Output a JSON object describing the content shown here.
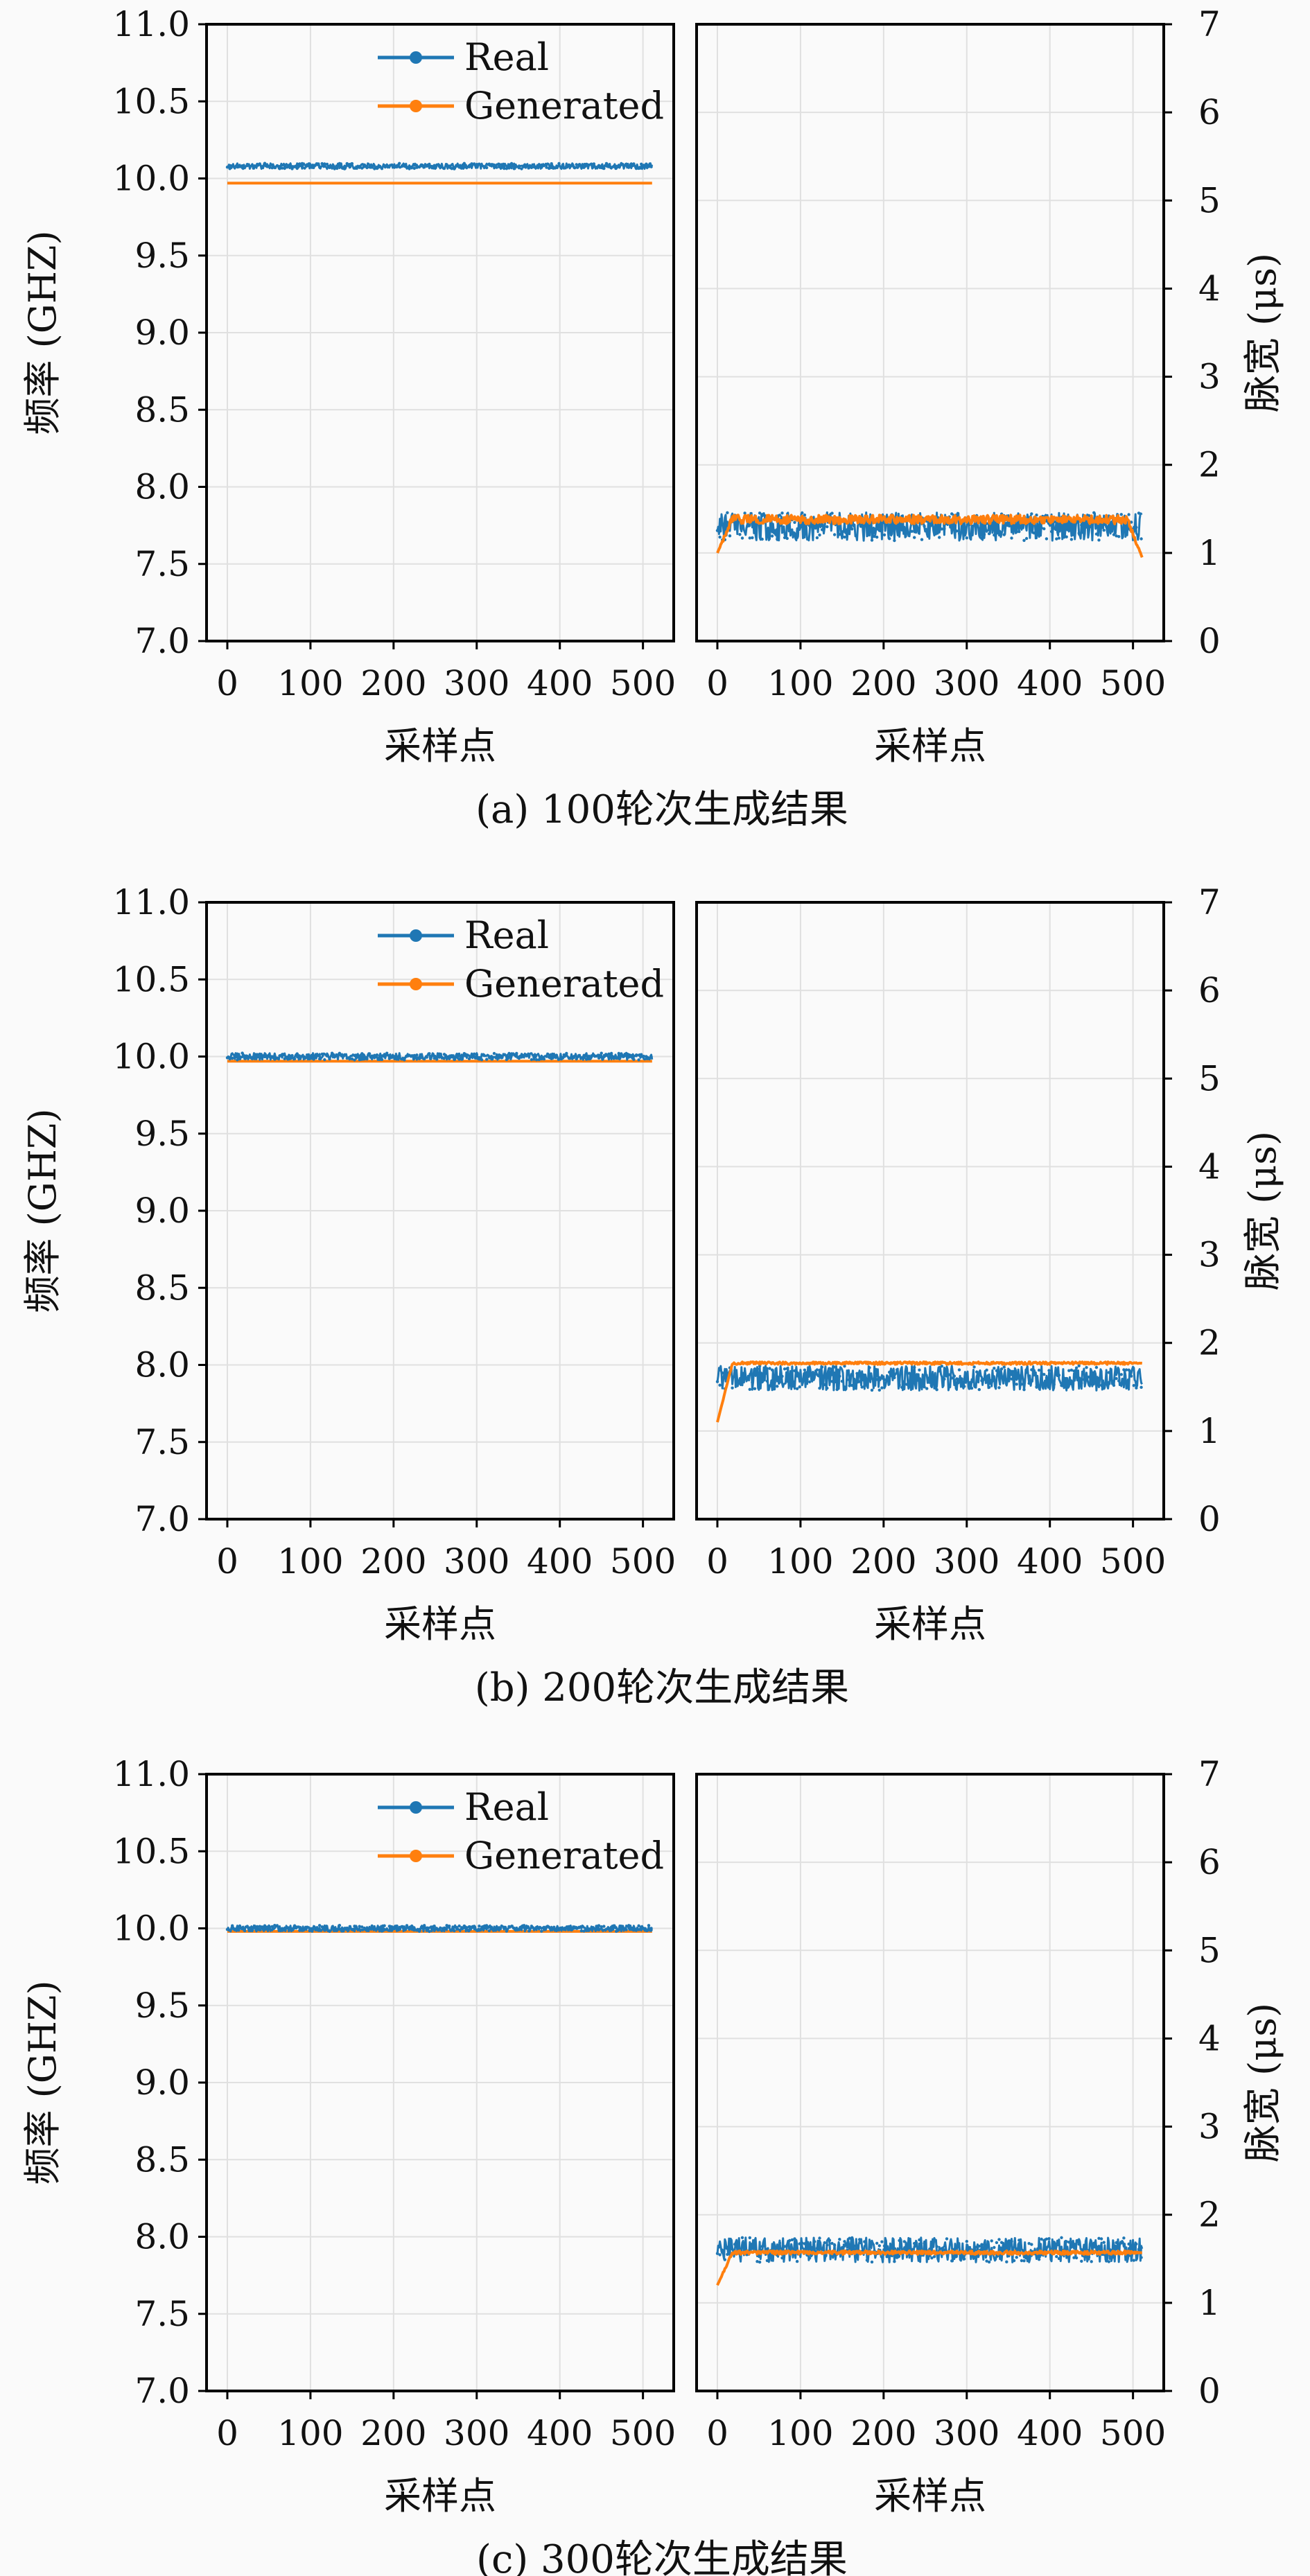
{
  "colors": {
    "real": "#1f77b4",
    "generated": "#ff7f0e"
  },
  "panels": [
    {
      "caption": "(a) 100轮次生成结果",
      "freq_chart": {
        "type": "line",
        "ylabel": "频率 (GHZ)",
        "xlabel": "采样点",
        "ylim": [
          7.0,
          11.0
        ],
        "xlim": [
          -25,
          537
        ],
        "yticks": [
          "7.0",
          "7.5",
          "8.0",
          "8.5",
          "9.0",
          "9.5",
          "10.0",
          "10.5",
          "11.0"
        ],
        "xticks": [
          "0",
          "100",
          "200",
          "300",
          "400",
          "500"
        ],
        "grid": true,
        "legend_position": "top-right",
        "series": [
          {
            "name": "Real",
            "mean": 10.08,
            "spread": 0.018,
            "x_range": [
              0,
              511
            ]
          },
          {
            "name": "Generated",
            "mean": 9.97,
            "spread": 0.0,
            "x_range": [
              0,
              511
            ]
          }
        ]
      },
      "pw_chart": {
        "type": "line",
        "ylabel": "脉宽 (μs)",
        "xlabel": "采样点",
        "ylim": [
          0,
          7
        ],
        "xlim": [
          -25,
          537
        ],
        "yticks": [
          "0",
          "1",
          "2",
          "3",
          "4",
          "5",
          "6",
          "7"
        ],
        "xticks": [
          "0",
          "100",
          "200",
          "300",
          "400",
          "500"
        ],
        "grid": true,
        "series": [
          {
            "name": "Real",
            "mean": 1.3,
            "spread": 0.16,
            "x_range": [
              0,
              511
            ]
          },
          {
            "name": "Generated",
            "mean": 1.38,
            "spread": 0.05,
            "start": 1.0,
            "end": 0.95,
            "x_range": [
              0,
              511
            ]
          }
        ]
      }
    },
    {
      "caption": "(b) 200轮次生成结果",
      "freq_chart": {
        "type": "line",
        "ylabel": "频率 (GHZ)",
        "xlabel": "采样点",
        "ylim": [
          7.0,
          11.0
        ],
        "xlim": [
          -25,
          537
        ],
        "yticks": [
          "7.0",
          "7.5",
          "8.0",
          "8.5",
          "9.0",
          "9.5",
          "10.0",
          "10.5",
          "11.0"
        ],
        "xticks": [
          "0",
          "100",
          "200",
          "300",
          "400",
          "500"
        ],
        "grid": true,
        "legend_position": "top-right",
        "series": [
          {
            "name": "Real",
            "mean": 10.0,
            "spread": 0.022,
            "x_range": [
              0,
              511
            ]
          },
          {
            "name": "Generated",
            "mean": 9.97,
            "spread": 0.0,
            "x_range": [
              0,
              511
            ]
          }
        ]
      },
      "pw_chart": {
        "type": "line",
        "ylabel": "脉宽 (μs)",
        "xlabel": "采样点",
        "ylim": [
          0,
          7
        ],
        "xlim": [
          -25,
          537
        ],
        "yticks": [
          "0",
          "1",
          "2",
          "3",
          "4",
          "5",
          "6",
          "7"
        ],
        "xticks": [
          "0",
          "100",
          "200",
          "300",
          "400",
          "500"
        ],
        "grid": true,
        "series": [
          {
            "name": "Real",
            "mean": 1.6,
            "spread": 0.14,
            "x_range": [
              0,
              511
            ]
          },
          {
            "name": "Generated",
            "mean": 1.77,
            "spread": 0.015,
            "start": 1.1,
            "end": 1.77,
            "x_range": [
              0,
              511
            ]
          }
        ]
      }
    },
    {
      "caption": "(c) 300轮次生成结果",
      "freq_chart": {
        "type": "line",
        "ylabel": "频率 (GHZ)",
        "xlabel": "采样点",
        "ylim": [
          7.0,
          11.0
        ],
        "xlim": [
          -25,
          537
        ],
        "yticks": [
          "7.0",
          "7.5",
          "8.0",
          "8.5",
          "9.0",
          "9.5",
          "10.0",
          "10.5",
          "11.0"
        ],
        "xticks": [
          "0",
          "100",
          "200",
          "300",
          "400",
          "500"
        ],
        "grid": true,
        "legend_position": "top-right",
        "series": [
          {
            "name": "Real",
            "mean": 10.0,
            "spread": 0.02,
            "x_range": [
              0,
              511
            ]
          },
          {
            "name": "Generated",
            "mean": 9.98,
            "spread": 0.0,
            "x_range": [
              0,
              511
            ]
          }
        ]
      },
      "pw_chart": {
        "type": "line",
        "ylabel": "脉宽 (μs)",
        "xlabel": "采样点",
        "ylim": [
          0,
          7
        ],
        "xlim": [
          -25,
          537
        ],
        "yticks": [
          "0",
          "1",
          "2",
          "3",
          "4",
          "5",
          "6",
          "7"
        ],
        "xticks": [
          "0",
          "100",
          "200",
          "300",
          "400",
          "500"
        ],
        "grid": true,
        "series": [
          {
            "name": "Real",
            "mean": 1.6,
            "spread": 0.14,
            "x_range": [
              0,
              511
            ]
          },
          {
            "name": "Generated",
            "mean": 1.57,
            "spread": 0.02,
            "start": 1.2,
            "end": 1.57,
            "x_range": [
              0,
              511
            ]
          }
        ]
      }
    }
  ]
}
